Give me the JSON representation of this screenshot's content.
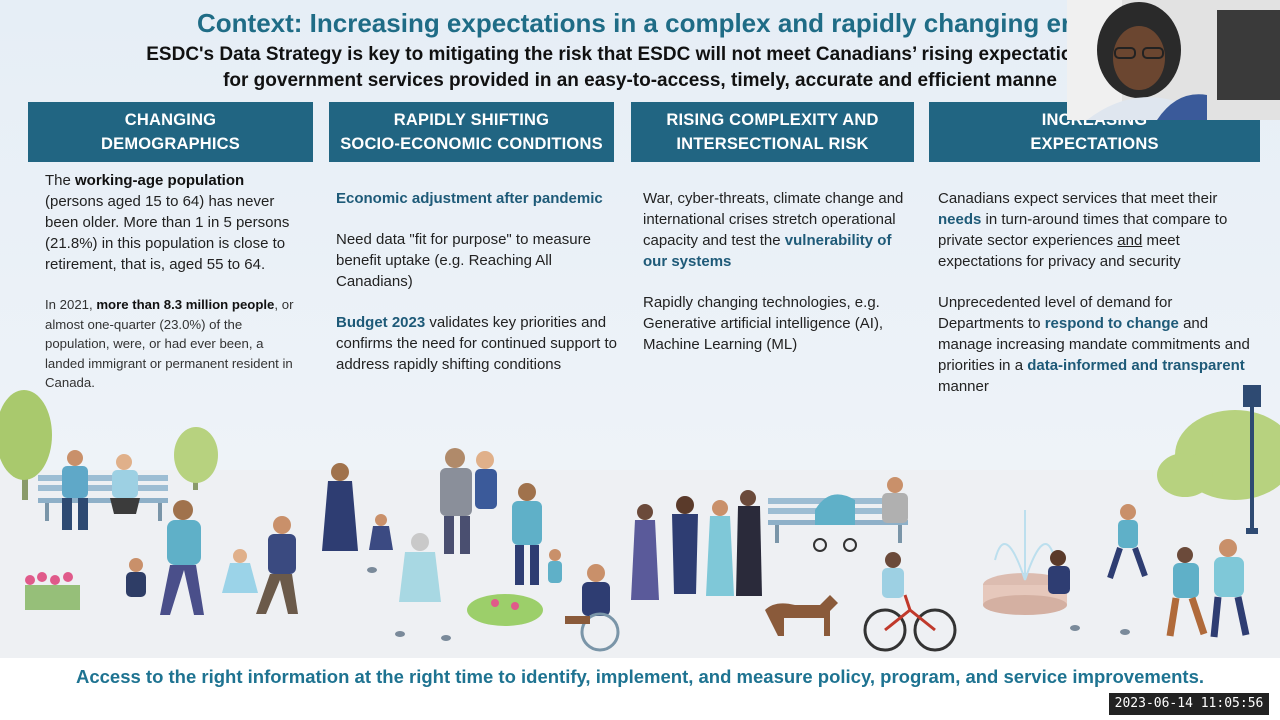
{
  "slide": {
    "title": "Context: Increasing expectations in a complex and rapidly changing environ",
    "subtitle_line1": "ESDC's Data Strategy is key to mitigating the risk that ESDC will not meet Canadians’ rising expectations and",
    "subtitle_line2": "for government services provided in an easy-to-access, timely, accurate and efficient manne",
    "columns": [
      {
        "header_line1": "CHANGING",
        "header_line2": "DEMOGRAPHICS",
        "p1_a": "The ",
        "p1_b": "working-age population",
        "p1_c": " (persons aged 15 to 64) has never been older. More than 1 in 5 persons (21.8%) in this population is close to retirement, that is, aged 55 to 64.",
        "p2_a": "In 2021, ",
        "p2_b": "more than 8.3 million people",
        "p2_c": ", or almost one-quarter (23.0%) of the population, were, or had ever been, a landed immigrant or permanent resident in Canada."
      },
      {
        "header_line1": "RAPIDLY SHIFTING",
        "header_line2": "SOCIO-ECONOMIC CONDITIONS",
        "p1": "Economic adjustment after pandemic",
        "p2": "Need data \"fit for purpose\" to measure benefit uptake (e.g. Reaching All Canadians)",
        "p3_a": "Budget 2023",
        "p3_b": " validates key priorities and confirms the need for continued support to address rapidly shifting conditions"
      },
      {
        "header_line1": "RISING COMPLEXITY AND",
        "header_line2": "INTERSECTIONAL RISK",
        "p1_a": "War, cyber-threats, climate change and international crises stretch operational capacity and test the ",
        "p1_b": "vulnerability of our systems",
        "p2": "Rapidly changing technologies, e.g. Generative artificial intelligence (AI), Machine Learning (ML)"
      },
      {
        "header_line1": "INCREASING",
        "header_line2": "EXPECTATIONS",
        "p1_a": "Canadians expect services that meet their ",
        "p1_b": "needs",
        "p1_c": " in turn-around times that compare to private sector experiences ",
        "p1_d": "and",
        "p1_e": " meet expectations for privacy and security",
        "p2_a": "Unprecedented level of demand for Departments to ",
        "p2_b": "respond to change",
        "p2_c": " and manage increasing mandate commitments and priorities in a ",
        "p2_d": "data-informed and transparent",
        "p2_e": " manner"
      }
    ],
    "footer": "Access to the right information at the right time to identify, implement, and measure policy, program, and service improvements."
  },
  "overlay": {
    "timestamp": "2023-06-14 11:05:56"
  },
  "colors": {
    "header_bg": "#216582",
    "title": "#1f6c86",
    "emphasis": "#1e5a78",
    "footer_text": "#1e7391"
  },
  "icons": [
    "park-illustration",
    "webcam-participant"
  ]
}
